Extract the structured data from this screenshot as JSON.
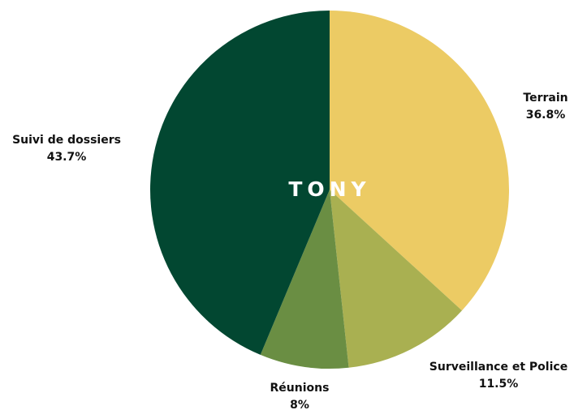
{
  "chart_data": {
    "type": "pie",
    "center_text": "TONY",
    "start": "top",
    "direction": "clockwise",
    "slices": [
      {
        "label": "Terrain",
        "value": 36.8,
        "value_label": "36.8%",
        "color": "#ECCB64"
      },
      {
        "label": "Surveillance et Police",
        "value": 11.5,
        "value_label": "11.5%",
        "color": "#A9B051"
      },
      {
        "label": "Réunions",
        "value": 8,
        "value_label": "8%",
        "color": "#6A8E43"
      },
      {
        "label": "Suivi de dossiers",
        "value": 43.7,
        "value_label": "43.7%",
        "color": "#024731"
      }
    ]
  }
}
